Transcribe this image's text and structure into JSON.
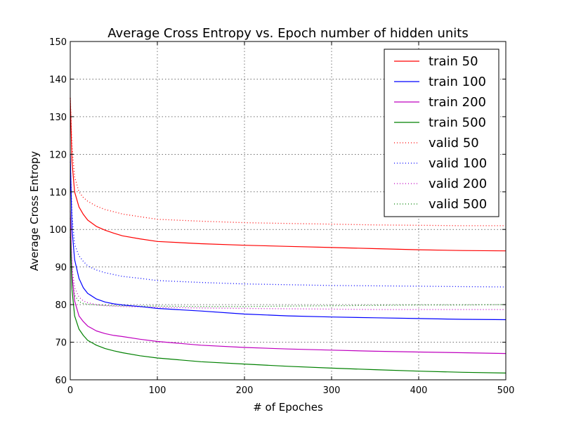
{
  "chart_data": {
    "type": "line",
    "title": "Average Cross Entropy vs. Epoch number of hidden units",
    "xlabel": "# of Epoches",
    "ylabel": "Average Cross Entropy",
    "xlim": [
      0,
      500
    ],
    "ylim": [
      60,
      150
    ],
    "xticks": [
      0,
      100,
      200,
      300,
      400,
      500
    ],
    "yticks": [
      60,
      70,
      80,
      90,
      100,
      110,
      120,
      130,
      140,
      150
    ],
    "grid": true,
    "legend_position": "top-right",
    "series": [
      {
        "name": "train 50",
        "color": "#ff0000",
        "style": "solid",
        "x": [
          0,
          2,
          5,
          10,
          15,
          20,
          30,
          40,
          50,
          60,
          80,
          100,
          150,
          200,
          250,
          300,
          350,
          400,
          450,
          500
        ],
        "y": [
          135,
          118,
          110,
          106,
          104,
          102.5,
          100.8,
          99.8,
          99,
          98.3,
          97.5,
          96.8,
          96.2,
          95.8,
          95.5,
          95.2,
          94.9,
          94.6,
          94.4,
          94.3
        ]
      },
      {
        "name": "train 100",
        "color": "#0000ff",
        "style": "solid",
        "x": [
          0,
          2,
          5,
          10,
          15,
          20,
          30,
          40,
          50,
          60,
          80,
          100,
          150,
          200,
          250,
          300,
          350,
          400,
          450,
          500
        ],
        "y": [
          120,
          100,
          92,
          87,
          84.5,
          83,
          81.5,
          80.7,
          80.2,
          79.9,
          79.5,
          79,
          78.3,
          77.5,
          77,
          76.7,
          76.5,
          76.3,
          76.1,
          76
        ]
      },
      {
        "name": "train 200",
        "color": "#bf00bf",
        "style": "solid",
        "x": [
          0,
          2,
          5,
          10,
          15,
          20,
          30,
          40,
          50,
          60,
          80,
          100,
          150,
          200,
          250,
          300,
          350,
          400,
          450,
          500
        ],
        "y": [
          105,
          88,
          81,
          77,
          75.5,
          74.3,
          73,
          72.3,
          71.8,
          71.5,
          70.8,
          70.2,
          69.2,
          68.6,
          68.2,
          67.9,
          67.6,
          67.4,
          67.2,
          67
        ]
      },
      {
        "name": "train 500",
        "color": "#008000",
        "style": "solid",
        "x": [
          0,
          2,
          5,
          10,
          15,
          20,
          30,
          40,
          50,
          60,
          80,
          100,
          150,
          200,
          250,
          300,
          350,
          400,
          450,
          500
        ],
        "y": [
          100,
          84,
          77,
          73.5,
          71.8,
          70.5,
          69.2,
          68.3,
          67.7,
          67.2,
          66.4,
          65.8,
          64.8,
          64.2,
          63.6,
          63.1,
          62.7,
          62.3,
          62,
          61.8
        ]
      },
      {
        "name": "valid 50",
        "color": "#ff0000",
        "style": "dotted",
        "x": [
          0,
          2,
          5,
          10,
          15,
          20,
          30,
          40,
          50,
          60,
          80,
          100,
          150,
          200,
          250,
          300,
          350,
          400,
          450,
          500
        ],
        "y": [
          135,
          122,
          114,
          110,
          108.5,
          107.5,
          106.2,
          105.3,
          104.7,
          104.1,
          103.4,
          102.7,
          102.2,
          101.8,
          101.6,
          101.4,
          101.2,
          101.1,
          101,
          101
        ]
      },
      {
        "name": "valid 100",
        "color": "#0000ff",
        "style": "dotted",
        "x": [
          0,
          2,
          5,
          10,
          15,
          20,
          30,
          40,
          50,
          60,
          80,
          100,
          150,
          200,
          250,
          300,
          350,
          400,
          450,
          500
        ],
        "y": [
          118,
          104,
          96,
          93,
          91.5,
          90.3,
          89.2,
          88.5,
          88,
          87.5,
          87,
          86.4,
          85.9,
          85.5,
          85.3,
          85.1,
          85,
          84.9,
          84.8,
          84.7
        ]
      },
      {
        "name": "valid 200",
        "color": "#bf00bf",
        "style": "dotted",
        "x": [
          0,
          2,
          5,
          10,
          15,
          20,
          30,
          40,
          50,
          60,
          80,
          100,
          150,
          200,
          250,
          300,
          350,
          400,
          450,
          500
        ],
        "y": [
          103,
          90,
          84.5,
          82,
          81,
          80.5,
          80,
          79.7,
          79.6,
          79.5,
          79.4,
          79.3,
          79.1,
          79,
          78.9,
          78.8,
          78.7,
          78.7,
          78.7,
          78.7
        ]
      },
      {
        "name": "valid 500",
        "color": "#008000",
        "style": "dotted",
        "x": [
          0,
          2,
          5,
          10,
          15,
          20,
          30,
          40,
          50,
          60,
          80,
          100,
          150,
          200,
          250,
          300,
          350,
          400,
          450,
          500
        ],
        "y": [
          98,
          87,
          82.5,
          80.8,
          80.3,
          80.1,
          79.9,
          79.8,
          79.7,
          79.7,
          79.6,
          79.6,
          79.5,
          79.5,
          79.6,
          79.7,
          79.8,
          79.9,
          79.9,
          80
        ]
      }
    ]
  }
}
